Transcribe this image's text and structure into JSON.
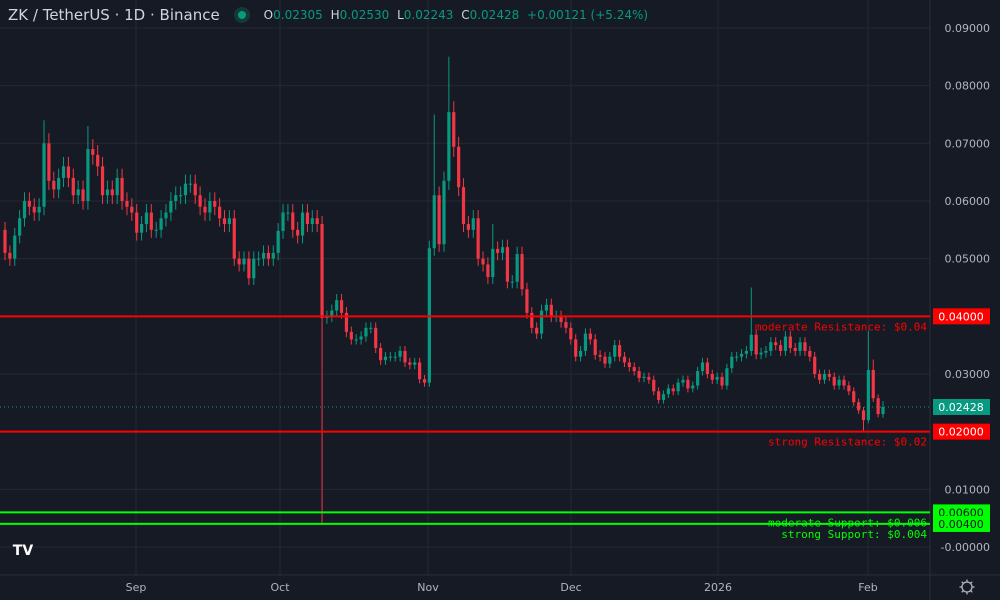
{
  "header": {
    "symbol": "ZK / TetherUS · 1D · Binance",
    "open_label": "O",
    "open": "0.02305",
    "high_label": "H",
    "high": "0.02530",
    "low_label": "L",
    "low": "0.02243",
    "close_label": "C",
    "close": "0.02428",
    "change": "+0.00121 (+5.24%)",
    "market_status": "open"
  },
  "colors": {
    "background": "#161a25",
    "up": "#089981",
    "down": "#f23645",
    "resistance": "#ff0000",
    "support": "#00ff00",
    "grid": "#242833"
  },
  "chart_data": {
    "type": "candlestick",
    "interval": "1D",
    "ylim": [
      0,
      0.09
    ],
    "y_ticks": [
      "0.09000",
      "0.08000",
      "0.07000",
      "0.06000",
      "0.05000",
      "0.03000",
      "0.01000",
      "-0.00000"
    ],
    "x_ticks": [
      "Sep",
      "Oct",
      "Nov",
      "Dec",
      "2026",
      "Feb"
    ],
    "grid": true,
    "first_open": 0.055,
    "closes": [
      0.051,
      0.05,
      0.054,
      0.057,
      0.06,
      0.059,
      0.058,
      0.059,
      0.07,
      0.0635,
      0.062,
      0.064,
      0.066,
      0.064,
      0.061,
      0.062,
      0.06,
      0.069,
      0.068,
      0.066,
      0.061,
      0.062,
      0.061,
      0.064,
      0.06,
      0.059,
      0.058,
      0.0545,
      0.056,
      0.058,
      0.055,
      0.055,
      0.057,
      0.058,
      0.06,
      0.061,
      0.061,
      0.063,
      0.063,
      0.061,
      0.059,
      0.058,
      0.06,
      0.059,
      0.057,
      0.056,
      0.057,
      0.05,
      0.049,
      0.05,
      0.0466,
      0.05,
      0.05,
      0.051,
      0.05,
      0.051,
      0.0548,
      0.058,
      0.058,
      0.055,
      0.054,
      0.058,
      0.056,
      0.057,
      0.056,
      0.0397,
      0.04,
      0.041,
      0.0428,
      0.0406,
      0.0373,
      0.036,
      0.036,
      0.0365,
      0.038,
      0.038,
      0.0345,
      0.0324,
      0.033,
      0.033,
      0.033,
      0.034,
      0.032,
      0.0316,
      0.032,
      0.0291,
      0.0285,
      0.0518,
      0.061,
      0.0525,
      0.0635,
      0.0754,
      0.0694,
      0.0624,
      0.056,
      0.055,
      0.057,
      0.05,
      0.049,
      0.0468,
      0.0517,
      0.051,
      0.052,
      0.046,
      0.046,
      0.0508,
      0.0447,
      0.0406,
      0.038,
      0.037,
      0.041,
      0.042,
      0.04,
      0.04,
      0.039,
      0.038,
      0.036,
      0.033,
      0.034,
      0.037,
      0.036,
      0.0333,
      0.033,
      0.0318,
      0.033,
      0.035,
      0.033,
      0.032,
      0.0312,
      0.0305,
      0.0293,
      0.0295,
      0.029,
      0.027,
      0.0255,
      0.0265,
      0.0275,
      0.027,
      0.0285,
      0.029,
      0.0275,
      0.028,
      0.0305,
      0.032,
      0.03,
      0.029,
      0.0295,
      0.028,
      0.031,
      0.033,
      0.033,
      0.0335,
      0.034,
      0.0368,
      0.0334,
      0.0337,
      0.034,
      0.0355,
      0.035,
      0.034,
      0.0365,
      0.0345,
      0.034,
      0.0355,
      0.034,
      0.033,
      0.03,
      0.029,
      0.03,
      0.0295,
      0.028,
      0.029,
      0.028,
      0.027,
      0.0251,
      0.0237,
      0.022,
      0.0307,
      0.0258,
      0.02305,
      0.02428
    ],
    "extreme_highs": {
      "8": 0.074,
      "17": 0.073,
      "88": 0.075,
      "91": 0.085,
      "100": 0.056,
      "153": 0.045,
      "177": 0.0375,
      "178": 0.0325,
      "180": 0.0253
    },
    "extreme_lows": {
      "65": 0.004,
      "176": 0.02,
      "180": 0.02243
    },
    "last_price": "0.02428",
    "levels": [
      {
        "price": 0.04,
        "axis_label": "0.04000",
        "text": "moderate Resistance: $0.04",
        "kind": "resistance"
      },
      {
        "price": 0.02,
        "axis_label": "0.02000",
        "text": "strong Resistance: $0.02",
        "kind": "resistance"
      },
      {
        "price": 0.006,
        "axis_label": "0.00600",
        "text": "moderate Support: $0.006",
        "kind": "support"
      },
      {
        "price": 0.004,
        "axis_label": "0.00400",
        "text": "strong Support: $0.004",
        "kind": "support"
      }
    ]
  },
  "footer": {
    "logo": "TV",
    "settings_icon": "gear-icon"
  }
}
